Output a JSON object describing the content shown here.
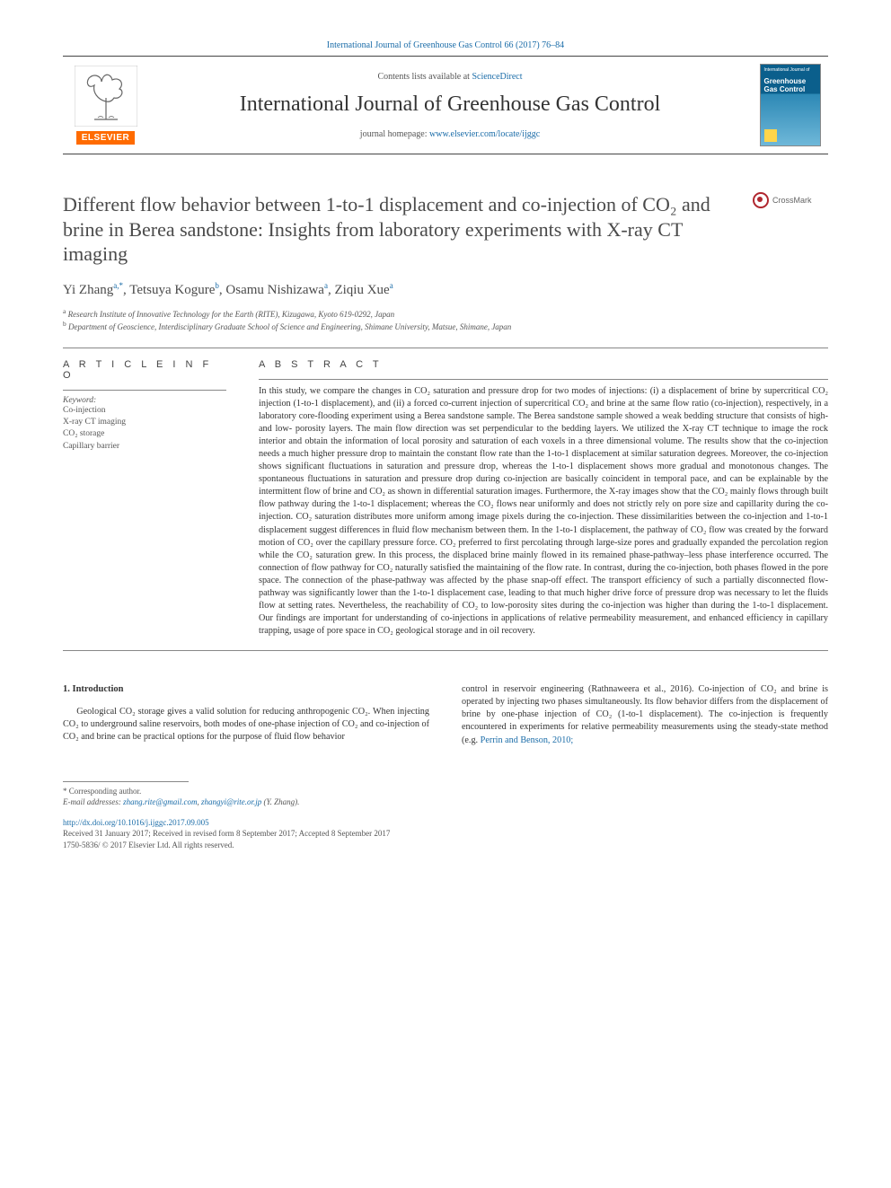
{
  "topbar": "International Journal of Greenhouse Gas Control 66 (2017) 76–84",
  "banner": {
    "contents_line_pre": "Contents lists available at ",
    "contents_link": "ScienceDirect",
    "journal_name": "International Journal of Greenhouse Gas Control",
    "homepage_pre": "journal homepage: ",
    "homepage_link": "www.elsevier.com/locate/ijggc",
    "elsevier": "ELSEVIER",
    "cover_small": "International Journal of",
    "cover_big": "Greenhouse Gas Control"
  },
  "crossmark": "CrossMark",
  "title": "Different flow behavior between 1-to-1 displacement and co-injection of CO₂ and brine in Berea sandstone: Insights from laboratory experiments with X-ray CT imaging",
  "authors_html": "Yi Zhang",
  "authors": [
    {
      "name": "Yi Zhang",
      "sup": "a,*"
    },
    {
      "name": "Tetsuya Kogure",
      "sup": "b"
    },
    {
      "name": "Osamu Nishizawa",
      "sup": "a"
    },
    {
      "name": "Ziqiu Xue",
      "sup": "a"
    }
  ],
  "affiliations": [
    {
      "sup": "a",
      "text": "Research Institute of Innovative Technology for the Earth (RITE), Kizugawa, Kyoto 619-0292, Japan"
    },
    {
      "sup": "b",
      "text": "Department of Geoscience, Interdisciplinary Graduate School of Science and Engineering, Shimane University, Matsue, Shimane, Japan"
    }
  ],
  "article_info": {
    "head": "A R T I C L E  I N F O",
    "kw_label": "Keyword:",
    "keywords": [
      "Co-injection",
      "X-ray CT imaging",
      "CO₂ storage",
      "Capillary barrier"
    ]
  },
  "abstract": {
    "head": "A B S T R A C T",
    "body": "In this study, we compare the changes in CO₂ saturation and pressure drop for two modes of injections: (i) a displacement of brine by supercritical CO₂ injection (1-to-1 displacement), and (ii) a forced co-current injection of supercritical CO₂ and brine at the same flow ratio (co-injection), respectively, in a laboratory core-flooding experiment using a Berea sandstone sample. The Berea sandstone sample showed a weak bedding structure that consists of high- and low- porosity layers. The main flow direction was set perpendicular to the bedding layers. We utilized the X-ray CT technique to image the rock interior and obtain the information of local porosity and saturation of each voxels in a three dimensional volume. The results show that the co-injection needs a much higher pressure drop to maintain the constant flow rate than the 1-to-1 displacement at similar saturation degrees. Moreover, the co-injection shows significant fluctuations in saturation and pressure drop, whereas the 1-to-1 displacement shows more gradual and monotonous changes. The spontaneous fluctuations in saturation and pressure drop during co-injection are basically coincident in temporal pace, and can be explainable by the intermittent flow of brine and CO₂ as shown in differential saturation images. Furthermore, the X-ray images show that the CO₂ mainly flows through built flow pathway during the 1-to-1 displacement; whereas the CO₂ flows near uniformly and does not strictly rely on pore size and capillarity during the co-injection. CO₂ saturation distributes more uniform among image pixels during the co-injection. These dissimilarities between the co-injection and 1-to-1 displacement suggest differences in fluid flow mechanism between them. In the 1-to-1 displacement, the pathway of CO₂ flow was created by the forward motion of CO₂ over the capillary pressure force. CO₂ preferred to first percolating through large-size pores and gradually expanded the percolation region while the CO₂ saturation grew. In this process, the displaced brine mainly flowed in its remained phase-pathway–less phase interference occurred. The connection of flow pathway for CO₂ naturally satisfied the maintaining of the flow rate. In contrast, during the co-injection, both phases flowed in the pore space. The connection of the phase-pathway was affected by the phase snap-off effect. The transport efficiency of such a partially disconnected flow-pathway was significantly lower than the 1-to-1 displacement case, leading to that much higher drive force of pressure drop was necessary to let the fluids flow at setting rates. Nevertheless, the reachability of CO₂ to low-porosity sites during the co-injection was higher than during the 1-to-1 displacement. Our findings are important for understanding of co-injections in applications of relative permeability measurement, and enhanced efficiency in capillary trapping, usage of pore space in CO₂ geological storage and in oil recovery."
  },
  "intro": {
    "head": "1. Introduction",
    "left": "Geological CO₂ storage gives a valid solution for reducing anthropogenic CO₂. When injecting CO₂ to underground saline reservoirs, both modes of one-phase injection of CO₂ and co-injection of CO₂ and brine can be practical options for the purpose of fluid flow behavior",
    "right_pre": "control in reservoir engineering (Rathnaweera et al., 2016). Co-injection of CO₂ and brine is operated by injecting two phases simultaneously. Its flow behavior differs from the displacement of brine by one-phase injection of CO₂ (1-to-1 displacement). The co-injection is frequently encountered in experiments for relative permeability measurements using the steady-state method (e.g. ",
    "right_link": "Perrin and Benson, 2010;"
  },
  "footer": {
    "corr": "* Corresponding author.",
    "email_label": "E-mail addresses: ",
    "email1": "zhang.rite@gmail.com",
    "email_sep": ", ",
    "email2": "zhangyi@rite.or.jp",
    "email_trail": " (Y. Zhang).",
    "doi": "http://dx.doi.org/10.1016/j.ijggc.2017.09.005",
    "received": "Received 31 January 2017; Received in revised form 8 September 2017; Accepted 8 September 2017",
    "issn": "1750-5836/ © 2017 Elsevier Ltd. All rights reserved."
  },
  "colors": {
    "link": "#1a6ca8",
    "text": "#333333",
    "muted": "#555555",
    "accent": "#ff6b00",
    "cover_top": "#0b5f8c",
    "cover_bot": "#6fb8d9",
    "crossmark": "#b0272f"
  },
  "typography": {
    "title_fs": 22,
    "journal_fs": 24,
    "body_fs": 10.2,
    "kw_fs": 9.5,
    "footer_fs": 9
  }
}
